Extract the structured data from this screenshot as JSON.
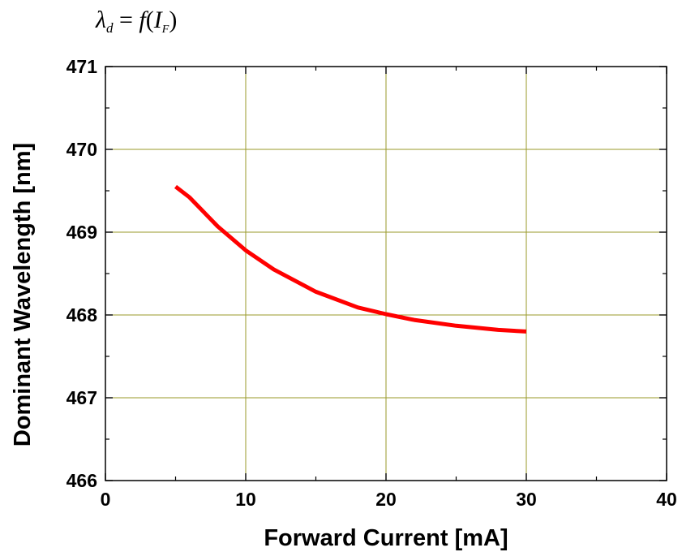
{
  "formula": {
    "lambda": "λ",
    "lambda_sub": "d",
    "equals": "=",
    "func": "f",
    "lparen": "(",
    "var": "I",
    "var_sub": "F",
    "rparen": ")"
  },
  "chart_data": {
    "type": "line",
    "xlabel": "Forward Current [mA]",
    "ylabel": "Dominant Wavelength [nm]",
    "xlim": [
      0,
      40
    ],
    "ylim": [
      466,
      471
    ],
    "xticks": [
      0,
      10,
      20,
      30,
      40
    ],
    "yticks": [
      466,
      467,
      468,
      469,
      470,
      471
    ],
    "grid": true,
    "line_color": "#ff0000",
    "grid_color": "#9a9a2a",
    "series": [
      {
        "x": [
          5,
          6,
          8,
          10,
          12,
          15,
          18,
          20,
          22,
          25,
          28,
          30
        ],
        "y": [
          469.55,
          469.42,
          469.07,
          468.78,
          468.55,
          468.28,
          468.09,
          468.01,
          467.94,
          467.87,
          467.82,
          467.8
        ]
      }
    ]
  }
}
